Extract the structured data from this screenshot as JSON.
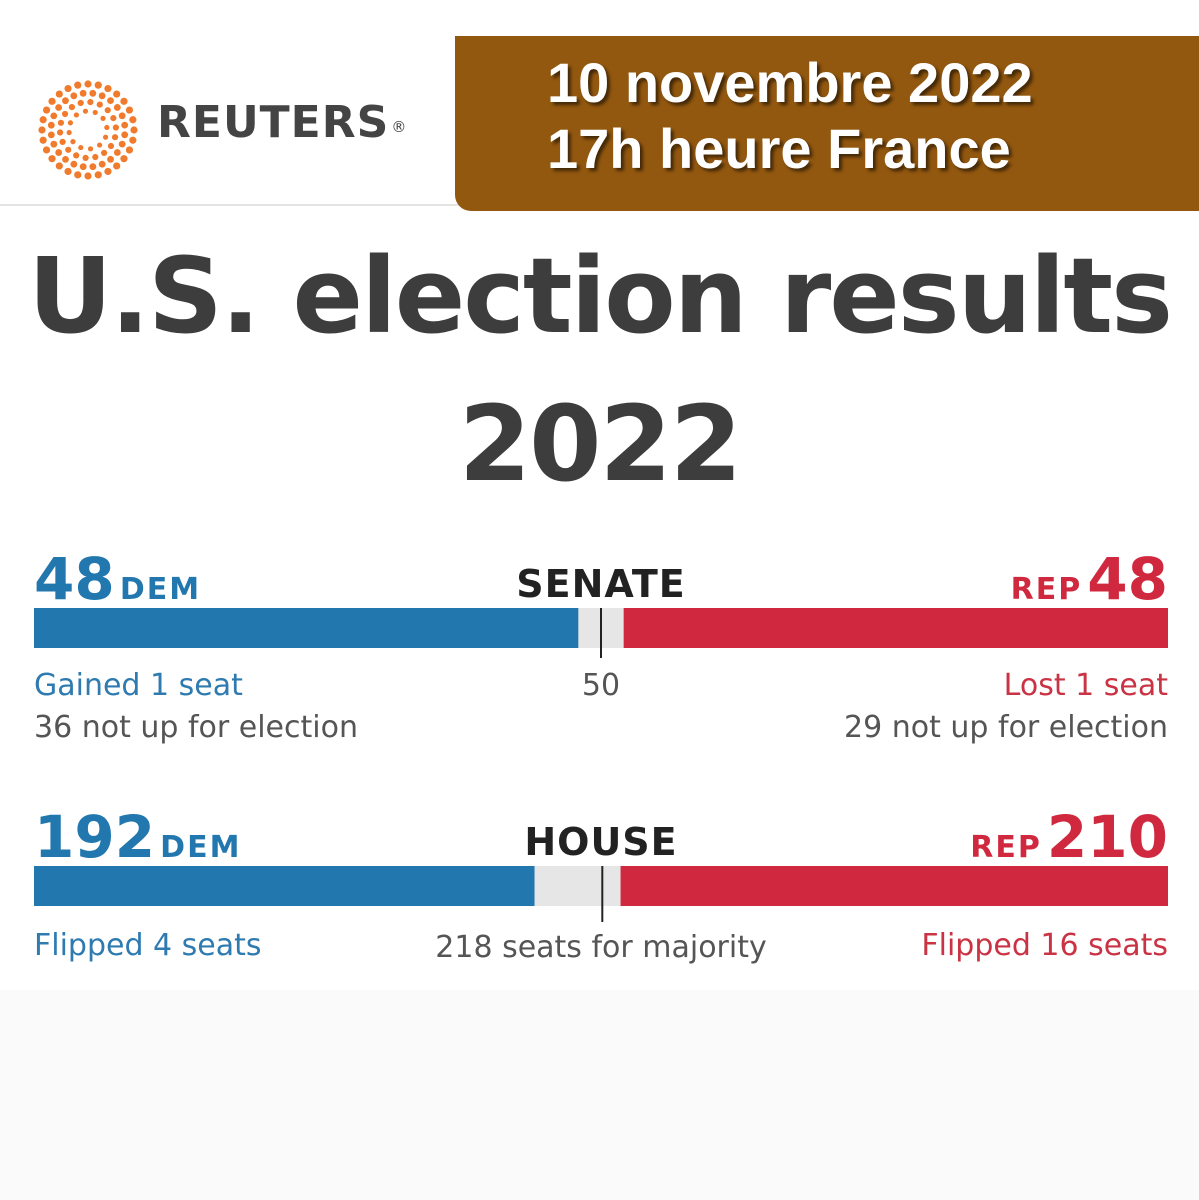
{
  "banner": {
    "logo_text": "REUTERS",
    "logo_mark": "®",
    "date_line1": "10 novembre 2022",
    "date_line2": "17h heure France",
    "color": "#93580f"
  },
  "title": {
    "line1": "U.S. election results",
    "line2": "2022"
  },
  "colors": {
    "dem": "#2177ae",
    "rep": "#d0283e",
    "neutral": "#e6e6e6"
  },
  "chart_data": [
    {
      "type": "bar",
      "chamber": "SENATE",
      "total": 100,
      "threshold": 50,
      "dem": {
        "seats": 48,
        "label": "DEM",
        "change": "Gained 1 seat",
        "not_up": "36 not up for election"
      },
      "rep": {
        "seats": 48,
        "label": "REP",
        "change": "Lost 1 seat",
        "not_up": "29 not up for election"
      },
      "threshold_label": "50"
    },
    {
      "type": "bar",
      "chamber": "HOUSE",
      "total": 435,
      "threshold": 218,
      "dem": {
        "seats": 192,
        "label": "DEM",
        "change": "Flipped 4 seats"
      },
      "rep": {
        "seats": 210,
        "label": "REP",
        "change": "Flipped 16 seats"
      },
      "threshold_label": "218 seats for majority"
    }
  ]
}
